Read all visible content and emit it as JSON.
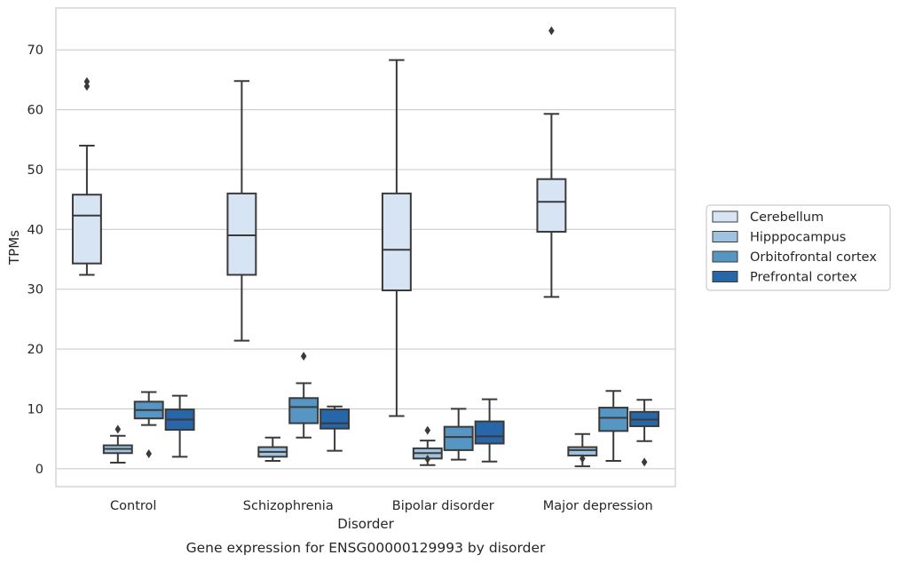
{
  "chart_data": {
    "type": "box",
    "caption": "Gene expression for ENSG00000129993 by disorder",
    "xlabel": "Disorder",
    "ylabel": "TPMs",
    "ylim": [
      -3,
      77
    ],
    "yticks": [
      0,
      10,
      20,
      30,
      40,
      50,
      60,
      70
    ],
    "grid": "horizontal",
    "legend_position": "right",
    "categories": [
      "Control",
      "Schizophrenia",
      "Bipolar disorder",
      "Major depression"
    ],
    "series": [
      {
        "name": "Cerebellum",
        "color": "#d6e4f3",
        "boxes": [
          {
            "whislo": 32.4,
            "q1": 34.3,
            "med": 42.3,
            "q3": 45.8,
            "whishi": 54.0,
            "fliers": [
              63.9,
              64.7
            ]
          },
          {
            "whislo": 21.4,
            "q1": 32.4,
            "med": 39.0,
            "q3": 46.0,
            "whishi": 64.8,
            "fliers": []
          },
          {
            "whislo": 8.8,
            "q1": 29.8,
            "med": 36.6,
            "q3": 46.0,
            "whishi": 68.3,
            "fliers": []
          },
          {
            "whislo": 28.7,
            "q1": 39.6,
            "med": 44.6,
            "q3": 48.4,
            "whishi": 59.3,
            "fliers": [
              73.2
            ]
          }
        ]
      },
      {
        "name": "Hipppocampus",
        "color": "#9fc3de",
        "boxes": [
          {
            "whislo": 1.0,
            "q1": 2.6,
            "med": 3.3,
            "q3": 3.9,
            "whishi": 5.5,
            "fliers": [
              6.6
            ]
          },
          {
            "whislo": 1.3,
            "q1": 2.0,
            "med": 2.8,
            "q3": 3.6,
            "whishi": 5.2,
            "fliers": []
          },
          {
            "whislo": 0.6,
            "q1": 1.7,
            "med": 2.6,
            "q3": 3.4,
            "whishi": 4.7,
            "fliers": [
              6.4,
              1.6
            ]
          },
          {
            "whislo": 0.4,
            "q1": 2.2,
            "med": 3.1,
            "q3": 3.6,
            "whishi": 5.8,
            "fliers": [
              1.7
            ]
          }
        ]
      },
      {
        "name": "Orbitofrontal cortex",
        "color": "#5795c3",
        "boxes": [
          {
            "whislo": 7.3,
            "q1": 8.4,
            "med": 9.8,
            "q3": 11.2,
            "whishi": 12.8,
            "fliers": [
              2.5
            ]
          },
          {
            "whislo": 5.2,
            "q1": 7.6,
            "med": 10.3,
            "q3": 11.8,
            "whishi": 14.3,
            "fliers": [
              18.8
            ]
          },
          {
            "whislo": 1.5,
            "q1": 3.1,
            "med": 5.3,
            "q3": 7.0,
            "whishi": 10.0,
            "fliers": []
          },
          {
            "whislo": 1.3,
            "q1": 6.3,
            "med": 8.5,
            "q3": 10.2,
            "whishi": 13.0,
            "fliers": []
          }
        ]
      },
      {
        "name": "Prefrontal cortex",
        "color": "#2767a9",
        "boxes": [
          {
            "whislo": 2.0,
            "q1": 6.5,
            "med": 8.2,
            "q3": 9.9,
            "whishi": 12.2,
            "fliers": []
          },
          {
            "whislo": 3.0,
            "q1": 6.7,
            "med": 7.6,
            "q3": 9.9,
            "whishi": 10.4,
            "fliers": []
          },
          {
            "whislo": 1.2,
            "q1": 4.2,
            "med": 5.4,
            "q3": 7.9,
            "whishi": 11.6,
            "fliers": []
          },
          {
            "whislo": 4.6,
            "q1": 7.1,
            "med": 8.2,
            "q3": 9.5,
            "whishi": 11.5,
            "fliers": [
              1.1
            ]
          }
        ]
      }
    ]
  }
}
